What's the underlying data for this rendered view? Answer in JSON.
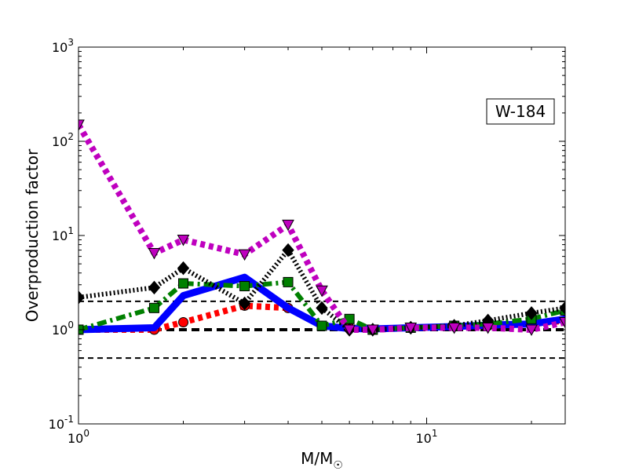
{
  "chart_data": {
    "type": "line",
    "title": "",
    "annotation": "W-184",
    "xlabel": "M/M",
    "xlabel_subscript": "☉",
    "ylabel": "Overproduction factor",
    "x_scale": "log",
    "y_scale": "log",
    "xlim": [
      1,
      25
    ],
    "ylim": [
      0.1,
      1000
    ],
    "x_ticks": [
      {
        "value": 1,
        "base": "10",
        "exp": "0"
      },
      {
        "value": 10,
        "base": "10",
        "exp": "1"
      }
    ],
    "y_ticks": [
      {
        "value": 0.1,
        "base": "10",
        "exp": "-1"
      },
      {
        "value": 1,
        "base": "10",
        "exp": "0"
      },
      {
        "value": 10,
        "base": "10",
        "exp": "1"
      },
      {
        "value": 100,
        "base": "10",
        "exp": "2"
      },
      {
        "value": 1000,
        "base": "10",
        "exp": "3"
      }
    ],
    "reference_lines": [
      {
        "y": 2,
        "style": "dashed-thin"
      },
      {
        "y": 1,
        "style": "dashed-thick"
      },
      {
        "y": 0.5,
        "style": "dashed-thin"
      }
    ],
    "legend": "none",
    "grid": false,
    "series": [
      {
        "color": "#ff0000",
        "line": "dotted",
        "marker": "circle",
        "x": [
          1,
          1.65,
          2,
          3,
          4,
          5,
          6,
          7,
          9,
          12,
          15,
          20,
          25
        ],
        "y": [
          1.0,
          1.0,
          1.2,
          1.8,
          1.7,
          1.1,
          1.05,
          1.0,
          1.05,
          1.08,
          1.1,
          1.15,
          1.25
        ]
      },
      {
        "color": "#0000ff",
        "line": "solid",
        "marker": "none",
        "x": [
          1,
          1.65,
          2,
          3,
          4,
          5,
          6,
          7,
          9,
          12,
          15,
          20,
          25
        ],
        "y": [
          1.0,
          1.05,
          2.3,
          3.6,
          1.7,
          1.1,
          1.03,
          1.02,
          1.05,
          1.08,
          1.12,
          1.15,
          1.3
        ]
      },
      {
        "color": "#008000",
        "line": "dashdot",
        "marker": "square",
        "x": [
          1,
          1.65,
          2,
          3,
          4,
          5,
          6,
          7,
          9,
          12,
          15,
          20,
          25
        ],
        "y": [
          1.0,
          1.7,
          3.1,
          2.9,
          3.2,
          1.1,
          1.3,
          1.0,
          1.05,
          1.1,
          1.15,
          1.3,
          1.6
        ]
      },
      {
        "color": "#000000",
        "line": "dotted",
        "marker": "diamond",
        "x": [
          1,
          1.65,
          2,
          3,
          4,
          5,
          6,
          7,
          9,
          12,
          15,
          20,
          25
        ],
        "y": [
          2.2,
          2.8,
          4.5,
          1.9,
          7.0,
          1.7,
          1.0,
          1.0,
          1.05,
          1.1,
          1.25,
          1.5,
          1.7
        ]
      },
      {
        "color": "#bf00bf",
        "line": "dotted",
        "marker": "triangle-down",
        "x": [
          1,
          1.65,
          2,
          3,
          4,
          5,
          6,
          7,
          9,
          12,
          15,
          20,
          25
        ],
        "y": [
          150,
          6.5,
          9.0,
          6.3,
          13,
          2.6,
          1.0,
          1.0,
          1.05,
          1.05,
          1.05,
          1.0,
          1.2
        ]
      }
    ]
  }
}
